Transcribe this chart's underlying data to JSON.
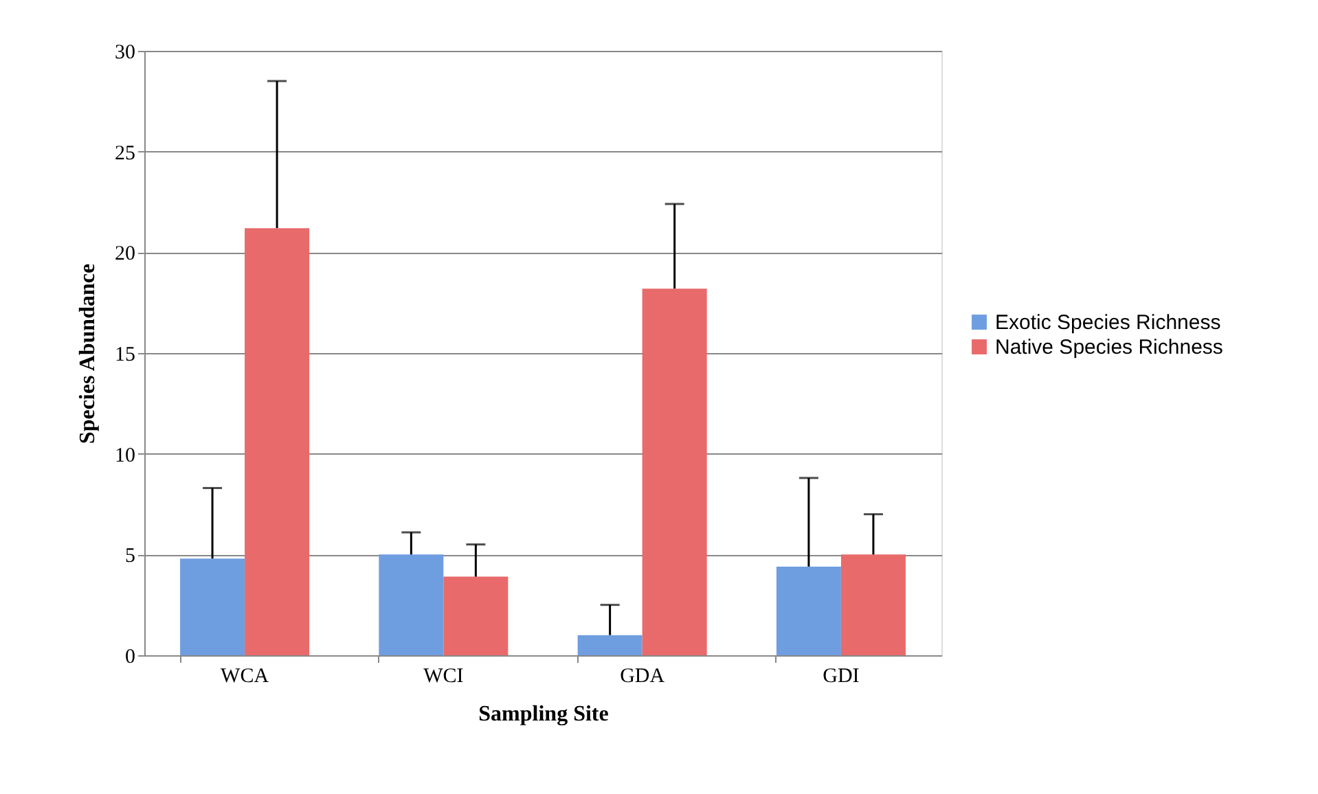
{
  "chart_data": {
    "type": "bar",
    "xlabel": "Sampling Site",
    "ylabel": "Species Abundance",
    "categories": [
      "WCA",
      "WCI",
      "GDA",
      "GDI"
    ],
    "series": [
      {
        "name": "Exotic Species Richness",
        "color": "#6f9ee0",
        "values": [
          4.8,
          5.0,
          1.0,
          4.4
        ],
        "errors": [
          [
            4.8,
            8.3
          ],
          [
            5.0,
            6.1
          ],
          [
            1.0,
            2.5
          ],
          [
            4.4,
            8.8
          ]
        ]
      },
      {
        "name": "Native Species Richness",
        "color": "#e86a6a",
        "values": [
          21.2,
          3.9,
          18.2,
          5.0
        ],
        "errors": [
          [
            21.2,
            28.5
          ],
          [
            3.9,
            5.5
          ],
          [
            18.2,
            22.4
          ],
          [
            5.0,
            7.0
          ]
        ]
      }
    ],
    "ylim": [
      0,
      30
    ],
    "yticks": [
      0,
      5,
      10,
      15,
      20,
      25,
      30
    ],
    "grid": "y",
    "legend": "right"
  }
}
